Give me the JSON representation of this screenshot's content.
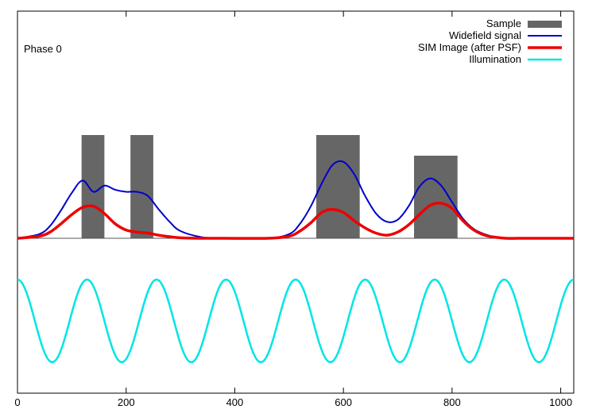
{
  "chart_data": {
    "type": "line",
    "title": "",
    "xlabel": "",
    "ylabel": "",
    "xlim": [
      0,
      1024
    ],
    "ylim": [
      -1.5,
      2.2
    ],
    "x_ticks": [
      0,
      200,
      400,
      600,
      800,
      1000
    ],
    "x_tick_labels": [
      "0",
      "200",
      "400",
      "600",
      "800",
      "1000"
    ],
    "annotation": "Phase 0",
    "legend_position": "top-right",
    "sample_bars": [
      {
        "x_start": 118,
        "x_end": 160,
        "height": 1.0
      },
      {
        "x_start": 208,
        "x_end": 250,
        "height": 1.0
      },
      {
        "x_start": 550,
        "x_end": 630,
        "height": 1.0
      },
      {
        "x_start": 730,
        "x_end": 810,
        "height": 0.8
      }
    ],
    "series": [
      {
        "name": "Sample",
        "style": "bar",
        "color": "#666666"
      },
      {
        "name": "Widefield signal",
        "color": "#0000cc",
        "x": [
          0,
          40,
          60,
          80,
          100,
          120,
          140,
          160,
          180,
          200,
          220,
          240,
          260,
          280,
          300,
          340,
          380,
          460,
          500,
          520,
          540,
          560,
          580,
          600,
          620,
          640,
          660,
          680,
          700,
          720,
          740,
          760,
          780,
          800,
          820,
          840,
          860,
          880,
          900,
          940,
          1024
        ],
        "y": [
          0,
          0.04,
          0.12,
          0.27,
          0.44,
          0.56,
          0.45,
          0.51,
          0.47,
          0.45,
          0.45,
          0.41,
          0.28,
          0.16,
          0.07,
          0.01,
          0,
          0,
          0.04,
          0.14,
          0.31,
          0.53,
          0.71,
          0.74,
          0.62,
          0.41,
          0.24,
          0.16,
          0.18,
          0.31,
          0.5,
          0.58,
          0.51,
          0.35,
          0.19,
          0.09,
          0.04,
          0.01,
          0,
          0,
          0
        ]
      },
      {
        "name": "SIM Image (after PSF)",
        "color": "#ee0000",
        "x": [
          0,
          40,
          60,
          80,
          100,
          120,
          140,
          160,
          180,
          200,
          220,
          240,
          260,
          280,
          300,
          340,
          380,
          460,
          500,
          520,
          540,
          560,
          580,
          600,
          620,
          640,
          660,
          680,
          700,
          720,
          740,
          760,
          780,
          800,
          820,
          840,
          860,
          880,
          900,
          940,
          1024
        ],
        "y": [
          0,
          0.02,
          0.06,
          0.14,
          0.23,
          0.3,
          0.31,
          0.24,
          0.14,
          0.08,
          0.06,
          0.05,
          0.03,
          0.015,
          0.005,
          0,
          0,
          0,
          0.02,
          0.07,
          0.15,
          0.25,
          0.28,
          0.25,
          0.17,
          0.1,
          0.05,
          0.03,
          0.06,
          0.13,
          0.23,
          0.32,
          0.34,
          0.29,
          0.17,
          0.08,
          0.03,
          0.01,
          0,
          0,
          0
        ]
      },
      {
        "name": "Illumination",
        "color": "#00e5e5",
        "function": "sine",
        "center": -0.8,
        "amplitude": 0.4,
        "period": 128,
        "phase_offset_x": -32
      }
    ]
  }
}
